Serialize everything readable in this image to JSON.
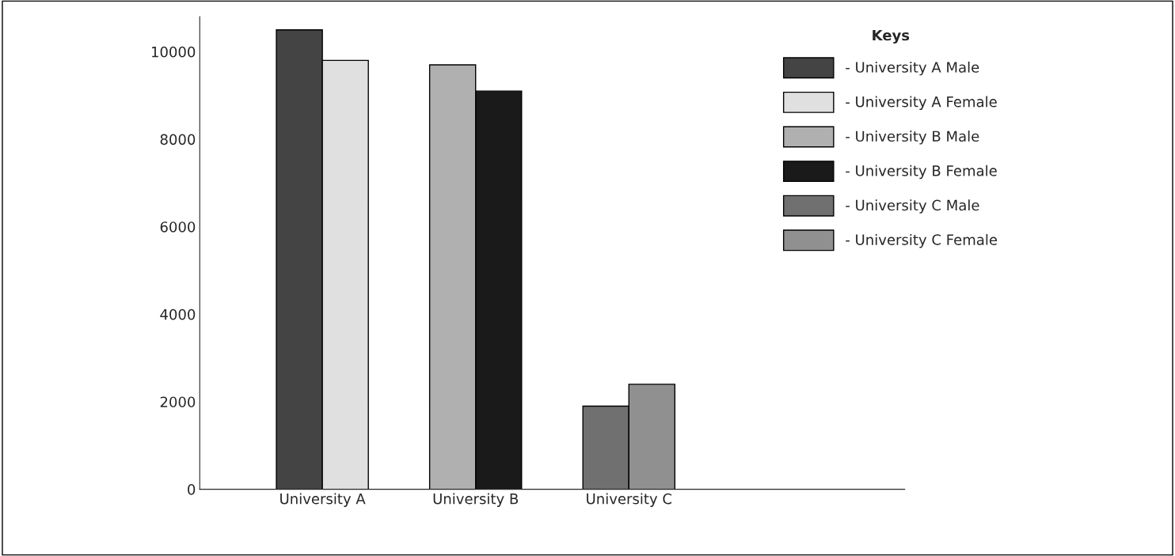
{
  "chart_data": {
    "type": "bar",
    "categories": [
      "University A",
      "University B",
      "University C"
    ],
    "series": [
      {
        "name": "- University A Male",
        "color": "#444444",
        "values": [
          10500,
          null,
          null
        ]
      },
      {
        "name": "- University A Female",
        "color": "#e0e0e0",
        "values": [
          9800,
          null,
          null
        ]
      },
      {
        "name": "- University B Male",
        "color": "#b0b0b0",
        "values": [
          null,
          9700,
          null
        ]
      },
      {
        "name": "- University B Female",
        "color": "#1a1a1a",
        "values": [
          null,
          9100,
          null
        ]
      },
      {
        "name": "- University C Male",
        "color": "#707070",
        "values": [
          null,
          null,
          1900
        ]
      },
      {
        "name": "- University C Female",
        "color": "#909090",
        "values": [
          null,
          null,
          2400
        ]
      }
    ],
    "ylim": [
      0,
      10800
    ],
    "yticks": [
      0,
      2000,
      4000,
      6000,
      8000,
      10000
    ],
    "legend_title": "Keys",
    "legend": "top right",
    "grid": false
  }
}
